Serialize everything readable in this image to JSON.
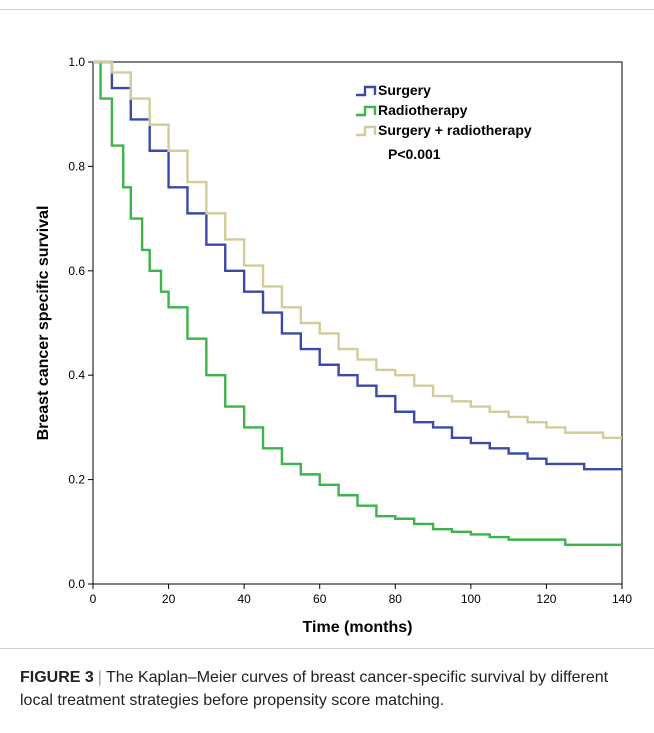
{
  "caption": {
    "label": "FIGURE 3",
    "separator": "|",
    "text": "The Kaplan–Meier curves of breast cancer-specific survival by different local treatment strategies before propensity score matching."
  },
  "chart_data": {
    "type": "line",
    "subtype": "kaplan-meier-step",
    "xlabel": "Time (months)",
    "ylabel": "Breast cancer specific survival",
    "xlim": [
      0,
      140
    ],
    "ylim": [
      0,
      1.0
    ],
    "xticks": [
      0,
      20,
      40,
      60,
      80,
      100,
      120,
      140
    ],
    "yticks": [
      0.0,
      0.2,
      0.4,
      0.6,
      0.8,
      1.0
    ],
    "xtick_labels": [
      "0",
      "20",
      "40",
      "60",
      "80",
      "100",
      "120",
      "140"
    ],
    "ytick_labels": [
      "0.0",
      "0.2",
      "0.4",
      "0.6",
      "0.8",
      "1.0"
    ],
    "grid": false,
    "legend_position": "top-right",
    "annotation": "P<0.001",
    "series": [
      {
        "name": "Surgery",
        "color": "#3b4aa6",
        "x": [
          0,
          5,
          10,
          15,
          20,
          25,
          30,
          35,
          40,
          45,
          50,
          55,
          60,
          65,
          70,
          75,
          80,
          85,
          90,
          95,
          100,
          105,
          110,
          115,
          120,
          125,
          130,
          135,
          140
        ],
        "y": [
          1.0,
          0.95,
          0.89,
          0.83,
          0.76,
          0.71,
          0.65,
          0.6,
          0.56,
          0.52,
          0.48,
          0.45,
          0.42,
          0.4,
          0.38,
          0.36,
          0.33,
          0.31,
          0.3,
          0.28,
          0.27,
          0.26,
          0.25,
          0.24,
          0.23,
          0.23,
          0.22,
          0.22,
          0.22
        ]
      },
      {
        "name": "Radiotherapy",
        "color": "#3db34a",
        "x": [
          0,
          2,
          5,
          8,
          10,
          13,
          15,
          18,
          20,
          25,
          30,
          35,
          40,
          45,
          50,
          55,
          60,
          65,
          70,
          75,
          80,
          85,
          90,
          95,
          100,
          105,
          110,
          115,
          120,
          125,
          130,
          140
        ],
        "y": [
          1.0,
          0.93,
          0.84,
          0.76,
          0.7,
          0.64,
          0.6,
          0.56,
          0.53,
          0.47,
          0.4,
          0.34,
          0.3,
          0.26,
          0.23,
          0.21,
          0.19,
          0.17,
          0.15,
          0.13,
          0.125,
          0.115,
          0.105,
          0.1,
          0.095,
          0.09,
          0.085,
          0.085,
          0.085,
          0.075,
          0.075,
          0.075
        ]
      },
      {
        "name": "Surgery + radiotherapy",
        "color": "#d3cc9a",
        "x": [
          0,
          5,
          10,
          15,
          20,
          25,
          30,
          35,
          40,
          45,
          50,
          55,
          60,
          65,
          70,
          75,
          80,
          85,
          90,
          95,
          100,
          105,
          110,
          115,
          120,
          125,
          130,
          135,
          140
        ],
        "y": [
          1.0,
          0.98,
          0.93,
          0.88,
          0.83,
          0.77,
          0.71,
          0.66,
          0.61,
          0.57,
          0.53,
          0.5,
          0.48,
          0.45,
          0.43,
          0.41,
          0.4,
          0.38,
          0.36,
          0.35,
          0.34,
          0.33,
          0.32,
          0.31,
          0.3,
          0.29,
          0.29,
          0.28,
          0.28
        ]
      }
    ]
  }
}
